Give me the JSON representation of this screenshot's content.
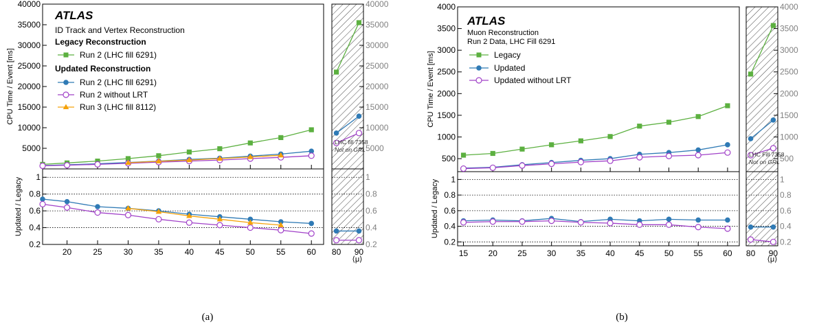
{
  "chart_data": [
    {
      "panel_caption": "(a)",
      "type": "line",
      "atlas_label": "ATLAS",
      "subtitle": "ID Track and Vertex Reconstruction",
      "legend_headers": [
        "Legacy Reconstruction",
        "Updated Reconstruction"
      ],
      "ylabel_top": "CPU Time / Event [ms]",
      "ylabel_bottom": "Updated / Legacy",
      "xlabel": "⟨μ⟩",
      "main_x_ticks": [
        20,
        25,
        30,
        35,
        40,
        45,
        50,
        55,
        60
      ],
      "main_xlim": [
        16,
        62
      ],
      "top_ylim": [
        0,
        40000
      ],
      "top_yticks": [
        5000,
        10000,
        15000,
        20000,
        25000,
        30000,
        35000,
        40000
      ],
      "bottom_ylim": [
        0.2,
        1.1
      ],
      "bottom_yticks": [
        0.2,
        0.4,
        0.6,
        0.8,
        1
      ],
      "bottom_grid": [
        0.4,
        0.6,
        0.8,
        1.0
      ],
      "legend_placement": "top-left",
      "series": [
        {
          "name": "Run 2 (LHC fill 6291)",
          "group": 0,
          "color": "#5cb040",
          "marker": "square",
          "x": [
            16,
            20,
            25,
            30,
            35,
            40,
            45,
            50,
            55,
            60
          ],
          "y": [
            1100,
            1450,
            1900,
            2500,
            3200,
            4100,
            4900,
            6300,
            7600,
            9500
          ]
        },
        {
          "name": "Run 2 (LHC fill 6291)",
          "group": 1,
          "color": "#2f7ab5",
          "marker": "circle",
          "x": [
            16,
            20,
            25,
            30,
            35,
            40,
            45,
            50,
            55,
            60
          ],
          "y": [
            800,
            1000,
            1250,
            1550,
            1900,
            2300,
            2600,
            3100,
            3600,
            4300
          ]
        },
        {
          "name": "Run 2 without LRT",
          "group": 1,
          "color": "#a040c8",
          "marker": "open-circle",
          "x": [
            16,
            20,
            25,
            30,
            35,
            40,
            45,
            50,
            55,
            60
          ],
          "y": [
            750,
            900,
            1100,
            1350,
            1650,
            1900,
            2150,
            2500,
            2800,
            3200
          ]
        },
        {
          "name": "Run 3 (LHC fill 8112)",
          "group": 1,
          "color": "#f5a20a",
          "marker": "triangle",
          "x": [
            30,
            35,
            40,
            45,
            50,
            55
          ],
          "y": [
            1500,
            1850,
            2150,
            2500,
            2900,
            3300
          ]
        }
      ],
      "ratio_series": [
        {
          "color": "#2f7ab5",
          "marker": "circle",
          "x": [
            16,
            20,
            25,
            30,
            35,
            40,
            45,
            50,
            55,
            60
          ],
          "y": [
            0.74,
            0.71,
            0.65,
            0.63,
            0.6,
            0.56,
            0.53,
            0.5,
            0.47,
            0.45
          ]
        },
        {
          "color": "#a040c8",
          "marker": "open-circle",
          "x": [
            16,
            20,
            25,
            30,
            35,
            40,
            45,
            50,
            55,
            60
          ],
          "y": [
            0.68,
            0.64,
            0.58,
            0.55,
            0.5,
            0.46,
            0.43,
            0.4,
            0.37,
            0.33
          ]
        },
        {
          "color": "#f5a20a",
          "marker": "triangle",
          "x": [
            30,
            35,
            40,
            45,
            50,
            55
          ],
          "y": [
            0.63,
            0.59,
            0.54,
            0.5,
            0.46,
            0.43
          ]
        }
      ],
      "side_panel": {
        "x_ticks": [
          80,
          90
        ],
        "xlim": [
          78,
          92
        ],
        "note_lines": [
          "LHC fill 7358",
          "Not on GRL"
        ],
        "top_series": [
          {
            "color": "#5cb040",
            "marker": "square",
            "x": [
              80,
              90
            ],
            "y": [
              23500,
              35500
            ]
          },
          {
            "color": "#2f7ab5",
            "marker": "circle",
            "x": [
              80,
              90
            ],
            "y": [
              8700,
              12800
            ]
          },
          {
            "color": "#a040c8",
            "marker": "open-circle",
            "x": [
              80,
              90
            ],
            "y": [
              6300,
              8700
            ]
          }
        ],
        "ratio_series": [
          {
            "color": "#2f7ab5",
            "marker": "circle",
            "x": [
              80,
              90
            ],
            "y": [
              0.36,
              0.36
            ]
          },
          {
            "color": "#a040c8",
            "marker": "open-circle",
            "x": [
              80,
              90
            ],
            "y": [
              0.25,
              0.25
            ]
          }
        ]
      }
    },
    {
      "panel_caption": "(b)",
      "type": "line",
      "atlas_label": "ATLAS",
      "subtitle": "Muon Reconstruction",
      "subtitle2": "Run 2 Data, LHC Fill 6291",
      "ylabel_top": "CPU Time / Event [ms]",
      "ylabel_bottom": "Updated / Legacy",
      "xlabel": "⟨μ⟩",
      "main_x_ticks": [
        15,
        20,
        25,
        30,
        35,
        40,
        45,
        50,
        55,
        60
      ],
      "main_xlim": [
        14,
        62
      ],
      "top_ylim": [
        200,
        4000
      ],
      "top_yticks": [
        500,
        1000,
        1500,
        2000,
        2500,
        3000,
        3500,
        4000
      ],
      "bottom_ylim": [
        0.15,
        1.1
      ],
      "bottom_yticks": [
        0.2,
        0.4,
        0.6,
        0.8,
        1
      ],
      "bottom_grid": [
        0.2,
        0.4,
        0.6,
        0.8,
        1.0
      ],
      "legend_placement": "top-left",
      "series": [
        {
          "name": "Legacy",
          "color": "#5cb040",
          "marker": "square",
          "x": [
            15,
            20,
            25,
            30,
            35,
            40,
            45,
            50,
            55,
            60
          ],
          "y": [
            580,
            620,
            720,
            820,
            910,
            1010,
            1250,
            1340,
            1470,
            1720
          ]
        },
        {
          "name": "Updated",
          "color": "#2f7ab5",
          "marker": "circle",
          "x": [
            15,
            20,
            25,
            30,
            35,
            40,
            45,
            50,
            55,
            60
          ],
          "y": [
            280,
            300,
            360,
            410,
            460,
            500,
            600,
            640,
            700,
            820
          ]
        },
        {
          "name": "Updated without LRT",
          "color": "#a040c8",
          "marker": "open-circle",
          "x": [
            15,
            20,
            25,
            30,
            35,
            40,
            45,
            50,
            55,
            60
          ],
          "y": [
            270,
            290,
            340,
            380,
            420,
            450,
            530,
            560,
            580,
            640
          ]
        }
      ],
      "ratio_series": [
        {
          "color": "#2f7ab5",
          "marker": "circle",
          "x": [
            15,
            20,
            25,
            30,
            35,
            40,
            45,
            50,
            55,
            60
          ],
          "y": [
            0.47,
            0.48,
            0.47,
            0.5,
            0.46,
            0.49,
            0.47,
            0.49,
            0.48,
            0.48
          ]
        },
        {
          "color": "#a040c8",
          "marker": "open-circle",
          "x": [
            15,
            20,
            25,
            30,
            35,
            40,
            45,
            50,
            55,
            60
          ],
          "y": [
            0.45,
            0.46,
            0.46,
            0.47,
            0.45,
            0.44,
            0.42,
            0.42,
            0.39,
            0.37
          ]
        }
      ],
      "side_panel": {
        "x_ticks": [
          80,
          90
        ],
        "xlim": [
          78,
          92
        ],
        "note_lines": [
          "LHC Fill 7358",
          "Not on GRL"
        ],
        "top_series": [
          {
            "color": "#5cb040",
            "marker": "square",
            "x": [
              80,
              90
            ],
            "y": [
              2450,
              3570
            ]
          },
          {
            "color": "#2f7ab5",
            "marker": "circle",
            "x": [
              80,
              90
            ],
            "y": [
              960,
              1390
            ]
          },
          {
            "color": "#a040c8",
            "marker": "open-circle",
            "x": [
              80,
              90
            ],
            "y": [
              580,
              740
            ]
          }
        ],
        "ratio_series": [
          {
            "color": "#2f7ab5",
            "marker": "circle",
            "x": [
              80,
              90
            ],
            "y": [
              0.39,
              0.39
            ]
          },
          {
            "color": "#a040c8",
            "marker": "open-circle",
            "x": [
              80,
              90
            ],
            "y": [
              0.23,
              0.2
            ]
          }
        ]
      }
    }
  ]
}
